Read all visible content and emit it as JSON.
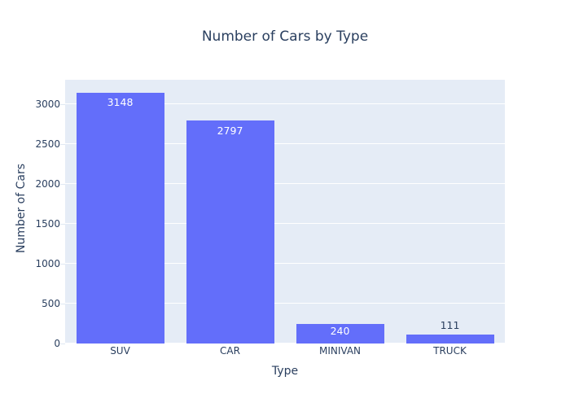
{
  "chart_data": {
    "type": "bar",
    "title": "Number of Cars by Type",
    "xlabel": "Type",
    "ylabel": "Number of Cars",
    "categories": [
      "SUV",
      "CAR",
      "MINIVAN",
      "TRUCK"
    ],
    "values": [
      3148,
      2797,
      240,
      111
    ],
    "bar_labels": [
      "3148",
      "2797",
      "240",
      "111"
    ],
    "label_positions": [
      "inside",
      "inside",
      "inside",
      "outside"
    ],
    "yticks": [
      0,
      500,
      1000,
      1500,
      2000,
      2500,
      3000
    ],
    "ylim": [
      0,
      3306
    ],
    "grid": true,
    "legend_position": "none",
    "colors": {
      "bar": "#636efa",
      "plot_bg": "#e5ecf6",
      "grid": "#ffffff",
      "text": "#2a3f5f",
      "inside_label": "#ffffff",
      "page_bg": "#ffffff"
    }
  }
}
